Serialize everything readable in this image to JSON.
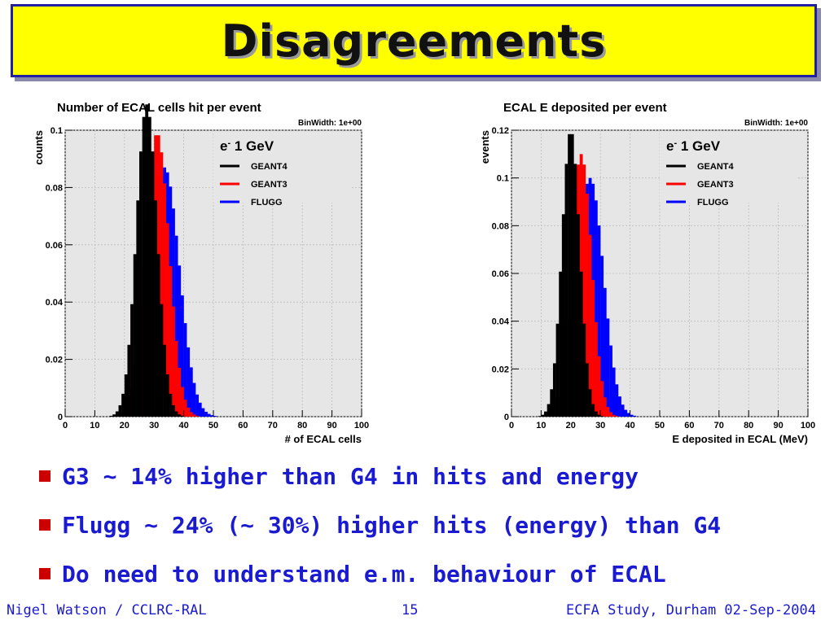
{
  "slide": {
    "title": "Disagreements",
    "bullets": [
      "G3 ~ 14% higher than G4 in hits and energy",
      "Flugg ~ 24% (~ 30%) higher hits (energy) than G4",
      "Do need to understand e.m.  behaviour of ECAL"
    ],
    "footer": {
      "left": "Nigel Watson / CCLRC-RAL",
      "center": "15",
      "right": "ECFA Study, Durham 02-Sep-2004"
    },
    "colors": {
      "title_bg": "#ffff00",
      "bullet_text": "#1a1ad0",
      "bullet_mark": "#cc0000"
    }
  },
  "chart_data": [
    {
      "type": "histogram",
      "title": "Number of ECAL cells hit per event",
      "binwidth_label": "BinWidth: 1e+00",
      "xlabel": "# of ECAL cells",
      "ylabel": "counts",
      "xlim": [
        0,
        100
      ],
      "ylim": [
        0,
        0.1
      ],
      "xticks": [
        0,
        10,
        20,
        30,
        40,
        50,
        60,
        70,
        80,
        90,
        100
      ],
      "yticks": [
        0,
        0.02,
        0.04,
        0.06,
        0.08,
        0.1
      ],
      "legend_title": "e",
      "legend_sup": "-",
      "legend_title_rest": " 1 GeV",
      "series": [
        {
          "name": "FLUGG",
          "color": "#0000ff",
          "peak": 33.5,
          "sigma": 5.0,
          "max": 0.087
        },
        {
          "name": "GEANT3",
          "color": "#ff0000",
          "peak": 31.0,
          "sigma": 4.0,
          "max": 0.099
        },
        {
          "name": "GEANT4",
          "color": "#000000",
          "peak": 27.5,
          "sigma": 3.5,
          "max": 0.109
        }
      ]
    },
    {
      "type": "histogram",
      "title": "ECAL E deposited per event",
      "binwidth_label": "BinWidth: 1e+00",
      "xlabel": "E deposited in ECAL (MeV)",
      "ylabel": "events",
      "xlim": [
        0,
        100
      ],
      "ylim": [
        0,
        0.12
      ],
      "xticks": [
        0,
        10,
        20,
        30,
        40,
        50,
        60,
        70,
        80,
        90,
        100
      ],
      "yticks": [
        0,
        0.02,
        0.04,
        0.06,
        0.08,
        0.1,
        0.12
      ],
      "legend_title": "e",
      "legend_sup": "-",
      "legend_title_rest": " 1 GeV",
      "series": [
        {
          "name": "FLUGG",
          "color": "#0000ff",
          "peak": 26.5,
          "sigma": 4.5,
          "max": 0.1
        },
        {
          "name": "GEANT3",
          "color": "#ff0000",
          "peak": 23.5,
          "sigma": 3.5,
          "max": 0.11
        },
        {
          "name": "GEANT4",
          "color": "#000000",
          "peak": 20.0,
          "sigma": 3.0,
          "max": 0.12
        }
      ]
    }
  ]
}
